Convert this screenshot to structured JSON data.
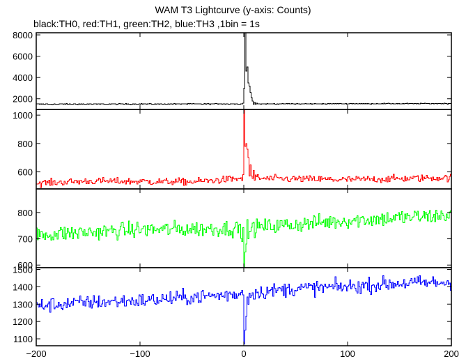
{
  "chart_data": {
    "type": "line",
    "title": "WAM T3 Lightcurve (y-axis: Counts)",
    "subtitle": "black:TH0, red:TH1, green:TH2, blue:TH3 ,1bin = 1s",
    "xlabel": "",
    "xlim": [
      -200,
      200
    ],
    "x_ticks": [
      -200,
      -100,
      0,
      100,
      200
    ],
    "grid": false,
    "panels": [
      {
        "name": "TH0",
        "color": "#000000",
        "ylim": [
          1000,
          8200
        ],
        "y_ticks": [
          2000,
          4000,
          6000,
          8000
        ],
        "y_tick_labels": [
          "2000",
          "4000",
          "6000",
          "8000"
        ],
        "baseline": {
          "x": [
            -200,
            0,
            200
          ],
          "y": [
            1500,
            1520,
            1550
          ]
        },
        "noise": 25,
        "peak": [
          {
            "x": -1,
            "y": 1600
          },
          {
            "x": 0,
            "y": 3000
          },
          {
            "x": 1,
            "y": 8200
          },
          {
            "x": 2,
            "y": 4600
          },
          {
            "x": 3,
            "y": 5000
          },
          {
            "x": 4,
            "y": 3500
          },
          {
            "x": 5,
            "y": 3200
          },
          {
            "x": 6,
            "y": 2600
          },
          {
            "x": 7,
            "y": 2100
          },
          {
            "x": 8,
            "y": 1800
          },
          {
            "x": 10,
            "y": 1650
          },
          {
            "x": 12,
            "y": 1580
          }
        ]
      },
      {
        "name": "TH1",
        "color": "#ff0000",
        "ylim": [
          480,
          1040
        ],
        "y_ticks": [
          600,
          800,
          1000
        ],
        "y_tick_labels": [
          "600",
          "800",
          "1000"
        ],
        "baseline": {
          "x": [
            -200,
            -150,
            -50,
            0,
            100,
            200
          ],
          "y": [
            520,
            535,
            530,
            555,
            545,
            560
          ]
        },
        "noise": 18,
        "peak": [
          {
            "x": -1,
            "y": 580
          },
          {
            "x": 0,
            "y": 1040
          },
          {
            "x": 1,
            "y": 780
          },
          {
            "x": 2,
            "y": 800
          },
          {
            "x": 3,
            "y": 760
          },
          {
            "x": 4,
            "y": 700
          },
          {
            "x": 6,
            "y": 650
          },
          {
            "x": 9,
            "y": 610
          },
          {
            "x": 13,
            "y": 580
          }
        ]
      },
      {
        "name": "TH2",
        "color": "#00ff00",
        "ylim": [
          590,
          890
        ],
        "y_ticks": [
          600,
          700,
          800
        ],
        "y_tick_labels": [
          "600",
          "700",
          "800"
        ],
        "baseline": {
          "x": [
            -200,
            -100,
            0,
            100,
            200
          ],
          "y": [
            715,
            735,
            740,
            770,
            790
          ]
        },
        "noise": 22,
        "peak": [
          {
            "x": -2,
            "y": 690
          },
          {
            "x": 0,
            "y": 590
          },
          {
            "x": 1,
            "y": 650
          },
          {
            "x": 2,
            "y": 680
          },
          {
            "x": 4,
            "y": 700
          }
        ]
      },
      {
        "name": "TH3",
        "color": "#0000ff",
        "ylim": [
          1060,
          1510
        ],
        "y_ticks": [
          1100,
          1200,
          1300,
          1400,
          1500
        ],
        "y_tick_labels": [
          "1100",
          "1200",
          "1300",
          "1400",
          "1500"
        ],
        "baseline": {
          "x": [
            -200,
            -150,
            -100,
            -50,
            0,
            50,
            100,
            150,
            200
          ],
          "y": [
            1290,
            1310,
            1320,
            1340,
            1360,
            1390,
            1400,
            1420,
            1425
          ]
        },
        "noise": 30,
        "peak": [
          {
            "x": -2,
            "y": 1380
          },
          {
            "x": 0,
            "y": 1070
          },
          {
            "x": 1,
            "y": 1150
          },
          {
            "x": 2,
            "y": 1230
          },
          {
            "x": 4,
            "y": 1300
          },
          {
            "x": 6,
            "y": 1340
          }
        ]
      }
    ]
  }
}
